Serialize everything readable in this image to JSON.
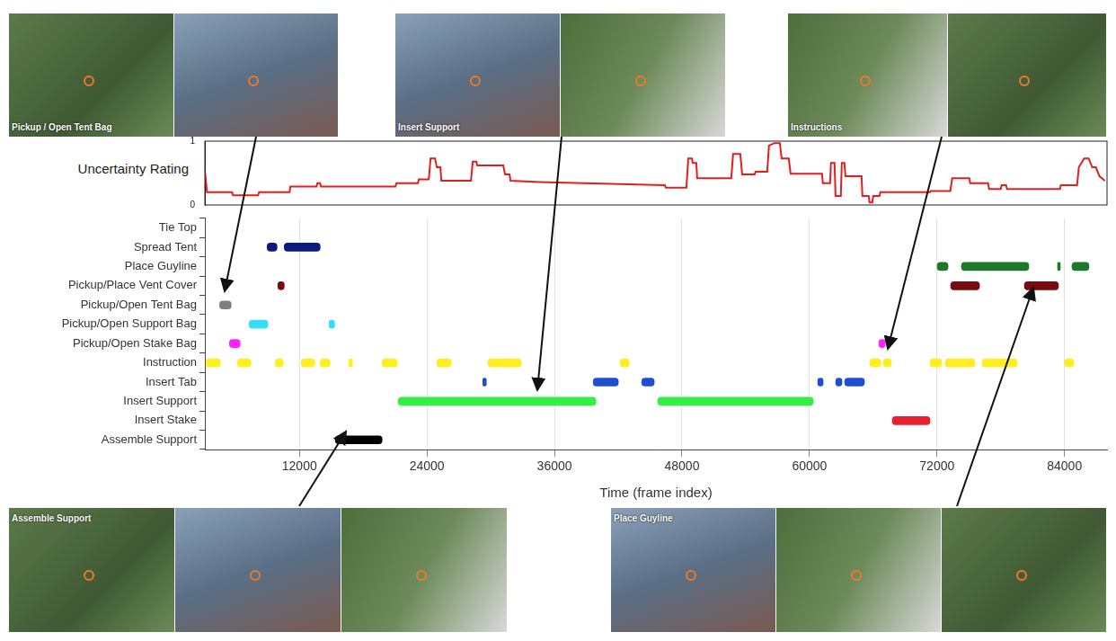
{
  "images": [
    {
      "caption": "Pickup / Open Tent Bag"
    },
    {
      "caption": "Insert Support"
    },
    {
      "caption": "Instructions"
    },
    {
      "caption": "Assemble Support"
    },
    {
      "caption": "Place Guyline"
    }
  ],
  "chart_data": [
    {
      "type": "line",
      "y_label": "Uncertainty Rating",
      "color": "#e02020",
      "xlim": [
        3100,
        88000
      ],
      "ylim": [
        0,
        1
      ],
      "yticks": [
        0,
        1
      ],
      "tick_labels": "y",
      "x": [
        3130,
        3300,
        5660,
        5750,
        8110,
        8200,
        11070,
        11150,
        13600,
        13690,
        13940,
        14030,
        21040,
        21130,
        23150,
        23240,
        24170,
        24340,
        24760,
        24930,
        25270,
        25350,
        28140,
        28310,
        28650,
        28730,
        31180,
        31350,
        31770,
        31860,
        34560,
        46390,
        46480,
        48420,
        48590,
        48930,
        49010,
        49350,
        49430,
        52640,
        52810,
        53490,
        53660,
        54840,
        54930,
        56020,
        56190,
        56700,
        57210,
        57380,
        58050,
        58220,
        61180,
        61260,
        61940,
        62020,
        62360,
        62450,
        62950,
        63040,
        63290,
        63380,
        64900,
        64980,
        65570,
        65660,
        65910,
        66000,
        66590,
        66670,
        71320,
        71400,
        73260,
        73430,
        75040,
        75120,
        76810,
        76900,
        78000,
        78080,
        78500,
        78590,
        83570,
        83660,
        85180,
        85350,
        85850,
        86270,
        86610,
        86950,
        87290,
        87800
      ],
      "values": [
        0.5,
        0.2,
        0.2,
        0.15,
        0.15,
        0.2,
        0.2,
        0.29,
        0.29,
        0.34,
        0.34,
        0.29,
        0.29,
        0.34,
        0.34,
        0.4,
        0.4,
        0.73,
        0.73,
        0.59,
        0.59,
        0.38,
        0.38,
        0.68,
        0.68,
        0.62,
        0.62,
        0.48,
        0.48,
        0.38,
        0.36,
        0.31,
        0.27,
        0.27,
        0.73,
        0.73,
        0.66,
        0.66,
        0.42,
        0.42,
        0.8,
        0.8,
        0.48,
        0.48,
        0.52,
        0.52,
        0.93,
        0.97,
        0.97,
        0.73,
        0.73,
        0.49,
        0.49,
        0.34,
        0.34,
        0.66,
        0.66,
        0.14,
        0.14,
        0.66,
        0.66,
        0.45,
        0.45,
        0.14,
        0.14,
        0.04,
        0.04,
        0.14,
        0.14,
        0.2,
        0.2,
        0.22,
        0.22,
        0.42,
        0.42,
        0.34,
        0.34,
        0.25,
        0.25,
        0.31,
        0.31,
        0.25,
        0.25,
        0.31,
        0.31,
        0.59,
        0.73,
        0.73,
        0.59,
        0.59,
        0.45,
        0.38
      ]
    },
    {
      "type": "timeline",
      "orientation": "horizontal",
      "x_label": "Time (frame index)",
      "xlim": [
        3100,
        88000
      ],
      "xticks": [
        12000,
        24000,
        36000,
        48000,
        60000,
        72000,
        84000
      ],
      "grid": true,
      "categories": [
        "Tie Top",
        "Spread Tent",
        "Place Guyline",
        "Pickup/Place Vent Cover",
        "Pickup/Open Tent Bag",
        "Pickup/Open Support Bag",
        "Pickup/Open Stake Bag",
        "Instruction",
        "Insert Tab",
        "Insert Support",
        "Insert Stake",
        "Assemble Support"
      ],
      "colors": [
        "#555555",
        "#0c1a80",
        "#1a7a2a",
        "#7a0a12",
        "#808080",
        "#33ddff",
        "#ff22ff",
        "#ffee22",
        "#1f4fd0",
        "#33ee44",
        "#e82030",
        "#000000"
      ],
      "segments": [
        [],
        [
          [
            8960,
            9890
          ],
          [
            10570,
            13950
          ]
        ],
        [
          [
            72020,
            73040
          ],
          [
            74300,
            80640
          ],
          [
            83350,
            83600
          ],
          [
            84700,
            86300
          ]
        ],
        [
          [
            9970,
            10570
          ],
          [
            73290,
            76000
          ],
          [
            80220,
            83430
          ]
        ],
        [
          [
            4480,
            5580
          ]
        ],
        [
          [
            7270,
            9040
          ],
          [
            14790,
            15300
          ]
        ],
        [
          [
            5410,
            6420
          ],
          [
            66530,
            67120
          ]
        ],
        [
          [
            3200,
            4560
          ],
          [
            6170,
            7440
          ],
          [
            9720,
            10480
          ],
          [
            12170,
            13440
          ],
          [
            13950,
            14880
          ],
          [
            16650,
            16990
          ],
          [
            19780,
            21220
          ],
          [
            24940,
            26290
          ],
          [
            29750,
            32880
          ],
          [
            42180,
            43030
          ],
          [
            65680,
            66700
          ],
          [
            66950,
            67710
          ],
          [
            71340,
            72440
          ],
          [
            72780,
            75570
          ],
          [
            76250,
            79540
          ],
          [
            84020,
            84870
          ]
        ],
        [
          [
            29250,
            29590
          ],
          [
            39650,
            42010
          ],
          [
            44210,
            45390
          ],
          [
            60780,
            61280
          ],
          [
            62470,
            63060
          ],
          [
            63310,
            65170
          ]
        ],
        [
          [
            21300,
            39900
          ],
          [
            45730,
            60350
          ]
        ],
        [
          [
            67790,
            71340
          ]
        ],
        [
          [
            15380,
            19780
          ]
        ]
      ]
    }
  ]
}
